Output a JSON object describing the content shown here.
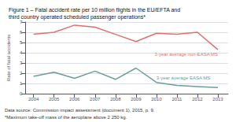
{
  "chart_data": {
    "type": "line",
    "title": "Figure 1 – Fatal accident rate per 10 million flights in the EU/EFTA and\nthird country operated scheduled passenger operations*",
    "x": [
      2004,
      2005,
      2006,
      2007,
      2008,
      2009,
      2010,
      2011,
      2012,
      2013
    ],
    "series": [
      {
        "name": "3-year average non-EASA MS",
        "color": "#e07070",
        "values": [
          5.8,
          6.0,
          6.7,
          6.5,
          5.8,
          5.1,
          5.9,
          5.8,
          6.0,
          4.3
        ]
      },
      {
        "name": "3-year average EASA MS",
        "color": "#6a9e9a",
        "values": [
          1.7,
          2.1,
          1.5,
          2.2,
          1.4,
          2.5,
          1.1,
          0.8,
          0.7,
          0.6
        ]
      }
    ],
    "xlim": [
      2003.6,
      2013.5
    ],
    "xticks": [
      2004,
      2005,
      2006,
      2007,
      2008,
      2009,
      2010,
      2011,
      2012,
      2013
    ],
    "ylim": [
      0,
      7
    ],
    "yticks": [
      0,
      1,
      2,
      3,
      4,
      5,
      6,
      7
    ],
    "ylabel": "Rate of fatal accidents",
    "grid": true,
    "annotations": [
      "Data source: Commission impact assessment (document 1), 2015, p. 9.",
      "*Maximum take-off mass of the aeroplane above 2 250 kg."
    ]
  }
}
